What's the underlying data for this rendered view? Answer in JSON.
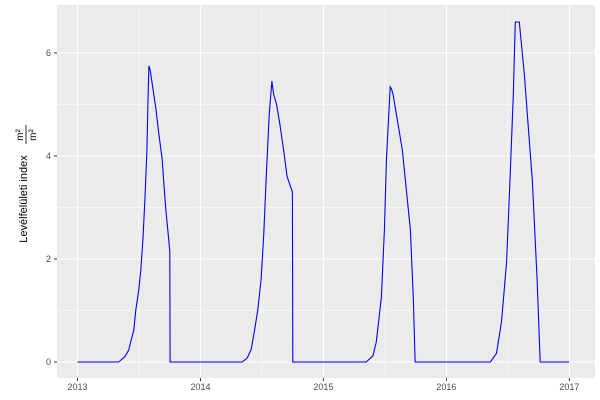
{
  "chart_data": {
    "type": "line",
    "title": "",
    "xlabel": "",
    "ylabel": "Levélfelületi index",
    "ylabel_unit_numerator": "m²",
    "ylabel_unit_denominator": "m²",
    "xlim": [
      "2012-11-01",
      "2017-03-18"
    ],
    "ylim": [
      -0.31,
      6.93
    ],
    "x_ticks": [
      "2013",
      "2014",
      "2015",
      "2016",
      "2017"
    ],
    "y_ticks": [
      "0",
      "2",
      "4",
      "6"
    ],
    "grid": true,
    "background": "#EBEBEB",
    "line_color": "#0000FF",
    "series": [
      {
        "points": [
          [
            "2013-01-01",
            0
          ],
          [
            "2013-05-03",
            0
          ],
          [
            "2013-05-21",
            0.1
          ],
          [
            "2013-06-02",
            0.23
          ],
          [
            "2013-06-08",
            0.39
          ],
          [
            "2013-06-17",
            0.62
          ],
          [
            "2013-06-23",
            1.01
          ],
          [
            "2013-07-02",
            1.4
          ],
          [
            "2013-07-08",
            1.79
          ],
          [
            "2013-07-14",
            2.37
          ],
          [
            "2013-07-20",
            3.15
          ],
          [
            "2013-07-26",
            4.1
          ],
          [
            "2013-07-29",
            5.0
          ],
          [
            "2013-08-01",
            5.75
          ],
          [
            "2013-08-05",
            5.65
          ],
          [
            "2013-08-13",
            5.3
          ],
          [
            "2013-08-22",
            4.9
          ],
          [
            "2013-08-31",
            4.4
          ],
          [
            "2013-09-09",
            3.95
          ],
          [
            "2013-09-15",
            3.4
          ],
          [
            "2013-09-21",
            2.9
          ],
          [
            "2013-09-27",
            2.5
          ],
          [
            "2013-10-02",
            2.15
          ],
          [
            "2013-10-03",
            0
          ],
          [
            "2014-05-05",
            0
          ],
          [
            "2014-05-20",
            0.08
          ],
          [
            "2014-06-01",
            0.25
          ],
          [
            "2014-06-10",
            0.6
          ],
          [
            "2014-06-20",
            1.0
          ],
          [
            "2014-06-30",
            1.6
          ],
          [
            "2014-07-08",
            2.5
          ],
          [
            "2014-07-16",
            3.7
          ],
          [
            "2014-07-24",
            4.8
          ],
          [
            "2014-08-01",
            5.45
          ],
          [
            "2014-08-06",
            5.2
          ],
          [
            "2014-08-15",
            5.0
          ],
          [
            "2014-08-25",
            4.6
          ],
          [
            "2014-09-05",
            4.1
          ],
          [
            "2014-09-15",
            3.6
          ],
          [
            "2014-10-01",
            3.3
          ],
          [
            "2014-10-02",
            0
          ],
          [
            "2015-05-08",
            0
          ],
          [
            "2015-05-28",
            0.12
          ],
          [
            "2015-06-07",
            0.39
          ],
          [
            "2015-06-22",
            1.26
          ],
          [
            "2015-07-01",
            2.56
          ],
          [
            "2015-07-07",
            3.92
          ],
          [
            "2015-07-18",
            5.34
          ],
          [
            "2015-07-22",
            5.3
          ],
          [
            "2015-07-27",
            5.18
          ],
          [
            "2015-08-23",
            4.12
          ],
          [
            "2015-09-16",
            2.56
          ],
          [
            "2015-09-25",
            1.2
          ],
          [
            "2015-09-30",
            0
          ],
          [
            "2016-05-11",
            0
          ],
          [
            "2016-05-29",
            0.17
          ],
          [
            "2016-06-13",
            0.78
          ],
          [
            "2016-06-28",
            1.94
          ],
          [
            "2016-07-09",
            3.69
          ],
          [
            "2016-07-18",
            5.18
          ],
          [
            "2016-07-24",
            6.6
          ],
          [
            "2016-08-05",
            6.6
          ],
          [
            "2016-08-20",
            5.57
          ],
          [
            "2016-09-13",
            3.5
          ],
          [
            "2016-09-27",
            1.6
          ],
          [
            "2016-10-06",
            0
          ],
          [
            "2016-12-31",
            0
          ]
        ]
      }
    ]
  }
}
